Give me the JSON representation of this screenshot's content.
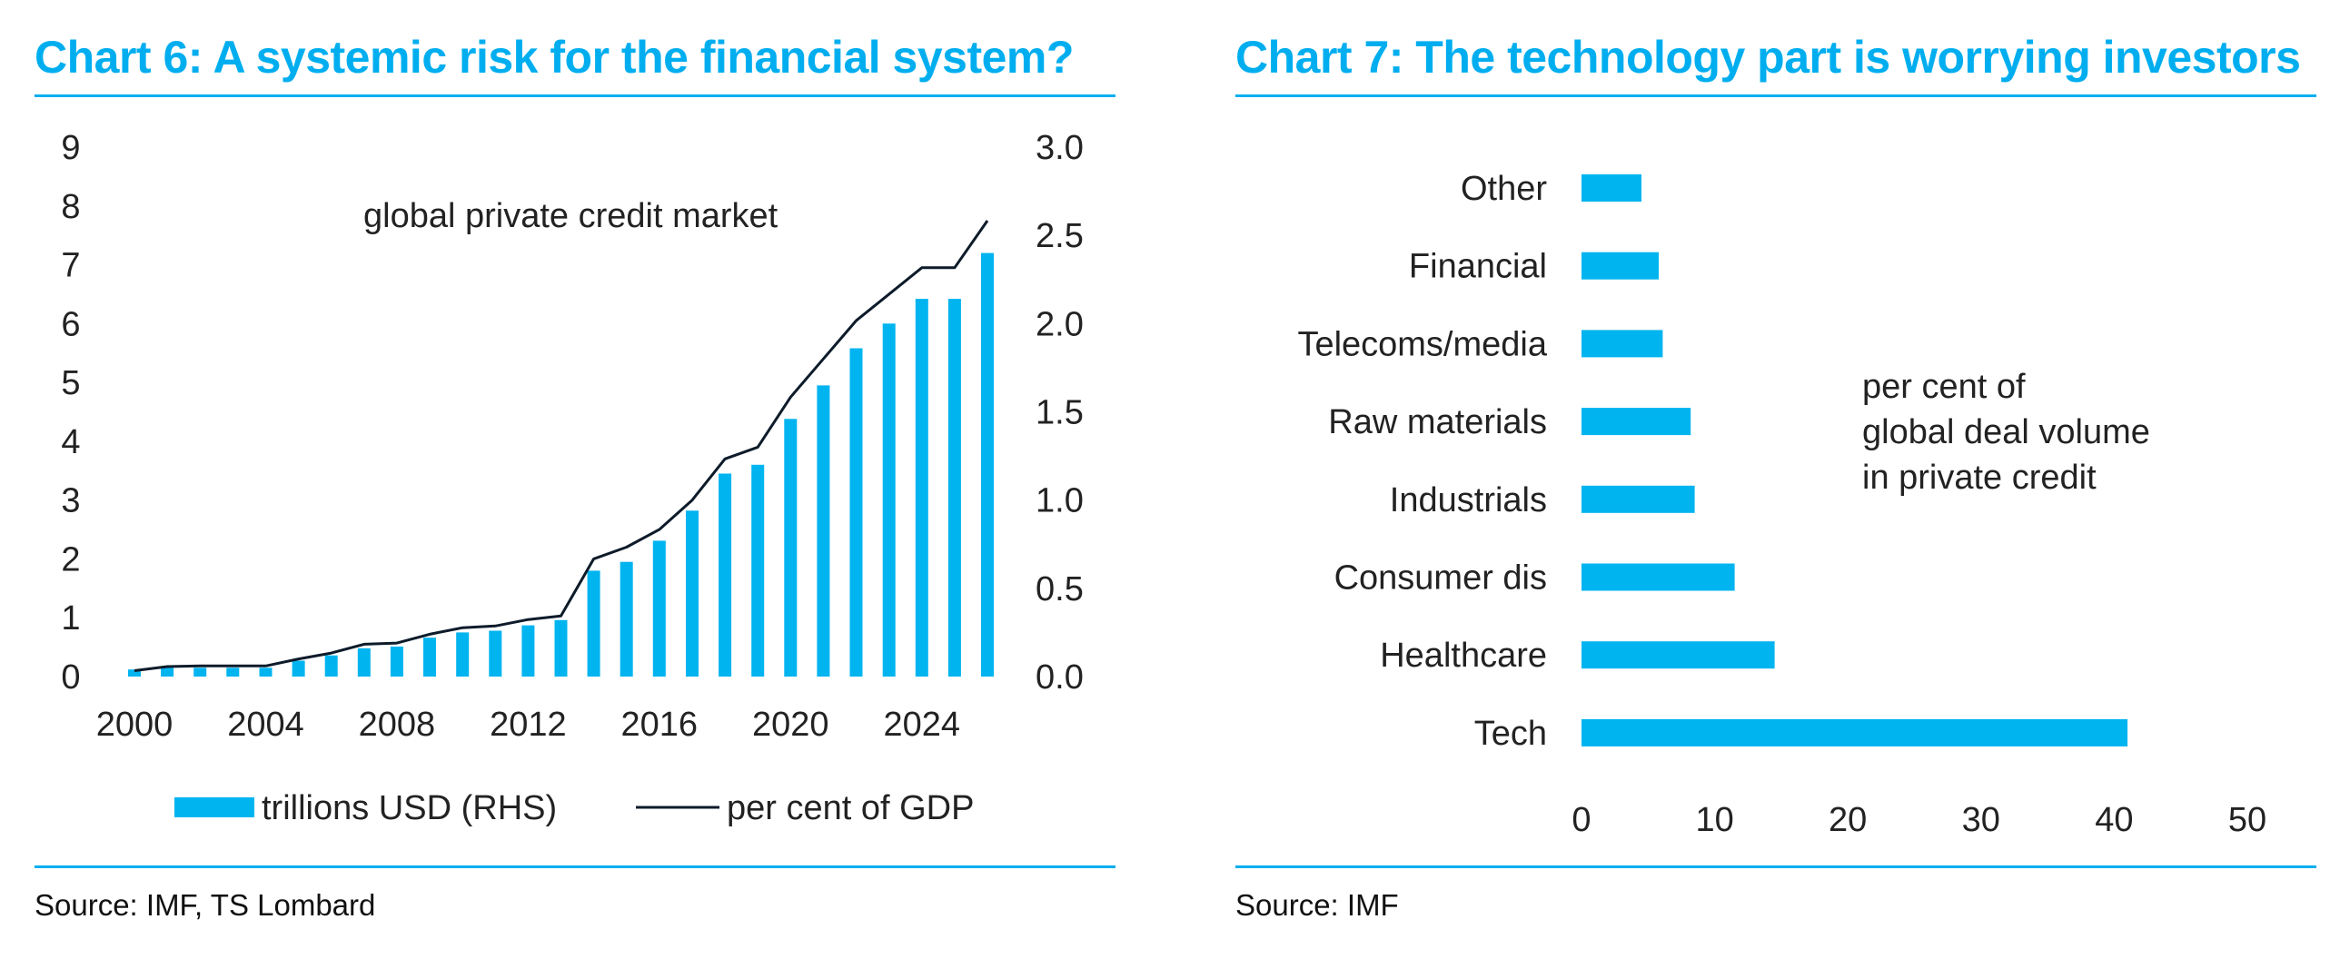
{
  "colors": {
    "accent": "#00AEEF",
    "bar": "#00B4F0",
    "line": "#0D1B2A",
    "text": "#222222"
  },
  "chart6": {
    "title": "Chart 6: A systemic risk for the financial system?",
    "source": "Source: IMF, TS Lombard",
    "annotation": "global private credit market"
  },
  "chart7": {
    "title": "Chart 7: The technology part is worrying investors",
    "source": "Source: IMF",
    "annotation": [
      "per cent of",
      "global deal volume",
      "in private credit"
    ]
  },
  "chart_data": [
    {
      "type": "bar+line",
      "title": "Chart 6: A systemic risk for the financial system?",
      "annotation": "global private credit market",
      "x": [
        2000,
        2001,
        2002,
        2003,
        2004,
        2005,
        2006,
        2007,
        2008,
        2009,
        2010,
        2011,
        2012,
        2013,
        2014,
        2015,
        2016,
        2017,
        2018,
        2019,
        2020,
        2021,
        2022,
        2023,
        2024,
        2025,
        2026
      ],
      "x_ticks": [
        "2000",
        "2004",
        "2008",
        "2012",
        "2016",
        "2020",
        "2024"
      ],
      "series": [
        {
          "name": "trillions USD (RHS)",
          "kind": "bar",
          "axis": "right",
          "values": [
            0.04,
            0.05,
            0.05,
            0.05,
            0.05,
            0.09,
            0.12,
            0.16,
            0.17,
            0.22,
            0.25,
            0.26,
            0.29,
            0.32,
            0.6,
            0.65,
            0.77,
            0.94,
            1.15,
            1.2,
            1.46,
            1.65,
            1.86,
            2.0,
            2.14,
            2.14,
            2.4
          ]
        },
        {
          "name": "per cent of GDP",
          "kind": "line",
          "axis": "left",
          "values": [
            0.1,
            0.17,
            0.18,
            0.18,
            0.18,
            0.3,
            0.4,
            0.55,
            0.57,
            0.72,
            0.83,
            0.86,
            0.97,
            1.03,
            2.0,
            2.2,
            2.5,
            3.0,
            3.7,
            3.9,
            4.75,
            5.4,
            6.05,
            6.5,
            6.95,
            6.95,
            7.75
          ]
        }
      ],
      "y_left": {
        "ylim": [
          0,
          9
        ],
        "ticks": [
          "0",
          "1",
          "2",
          "3",
          "4",
          "5",
          "6",
          "7",
          "8",
          "9"
        ]
      },
      "y_right": {
        "ylim": [
          0,
          3.0
        ],
        "ticks": [
          "0.0",
          "0.5",
          "1.0",
          "1.5",
          "2.0",
          "2.5",
          "3.0"
        ]
      },
      "legend": [
        "trillions USD (RHS)",
        "per cent of GDP"
      ]
    },
    {
      "type": "bar",
      "orientation": "horizontal",
      "title": "Chart 7: The technology part is worrying investors",
      "categories": [
        "Other",
        "Financial",
        "Telecoms/media",
        "Raw materials",
        "Industrials",
        "Consumer dis",
        "Healthcare",
        "Tech"
      ],
      "values": [
        4.5,
        5.8,
        6.1,
        8.2,
        8.5,
        11.5,
        14.5,
        41
      ],
      "xlim": [
        0,
        50
      ],
      "x_ticks": [
        "0",
        "10",
        "20",
        "30",
        "40",
        "50"
      ],
      "annotation": "per cent of global deal volume in private credit"
    }
  ]
}
